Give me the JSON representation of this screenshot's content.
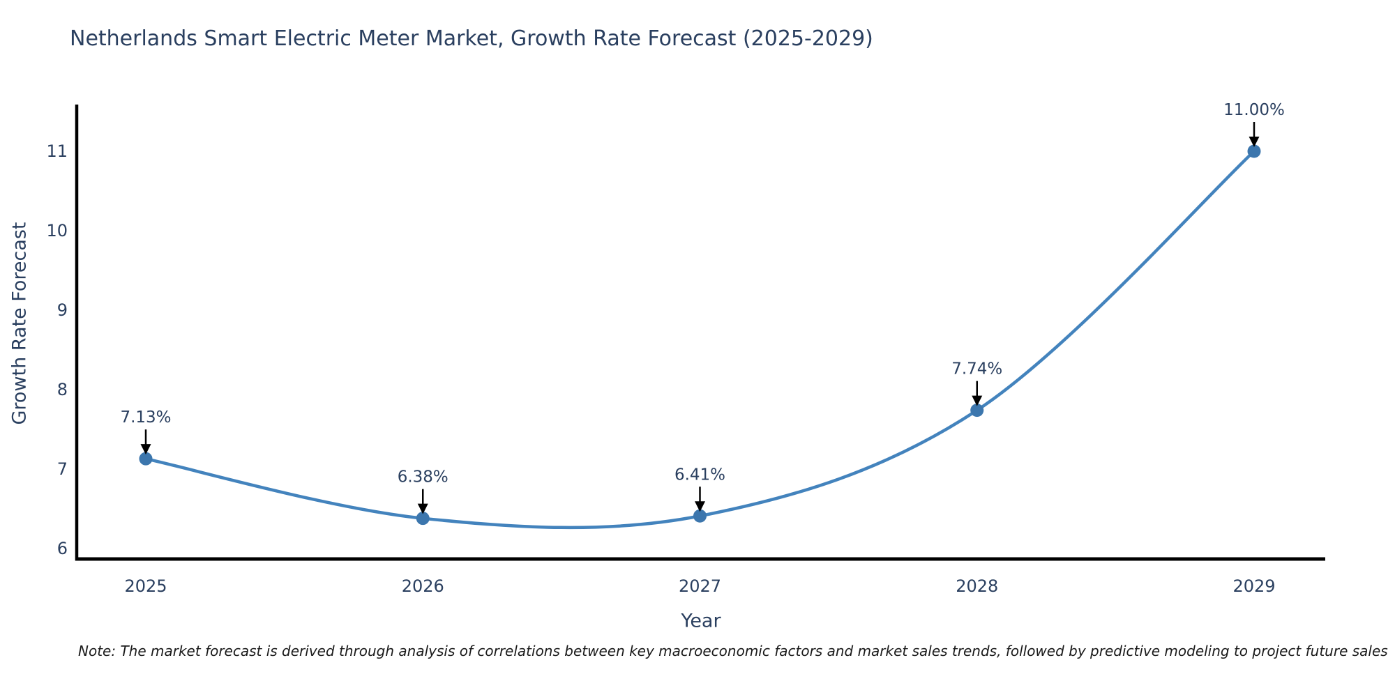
{
  "chart": {
    "title": "Netherlands Smart Electric Meter Market, Growth Rate Forecast (2025-2029)",
    "xlabel": "Year",
    "ylabel": "Growth Rate Forecast",
    "note": "Note: The market forecast is derived through analysis of correlations between key macroeconomic factors and market sales trends, followed by predictive modeling to project future sales"
  },
  "chart_data": {
    "type": "line",
    "line_shape": "spline",
    "title": "Netherlands Smart Electric Meter Market, Growth Rate Forecast (2025-2029)",
    "xlabel": "Year",
    "ylabel": "Growth Rate Forecast",
    "x": [
      2025,
      2026,
      2027,
      2028,
      2029
    ],
    "values": [
      7.13,
      6.38,
      6.41,
      7.74,
      11.0
    ],
    "point_labels": [
      "7.13%",
      "6.38%",
      "6.41%",
      "7.74%",
      "11.00%"
    ],
    "yticks": [
      6,
      7,
      8,
      9,
      10,
      11
    ],
    "ylim": [
      5.87,
      11.59
    ],
    "grid": false,
    "legend_position": "none",
    "markers": true,
    "annotation_arrows": true,
    "colors": {
      "line": "#4383bd",
      "marker": "#3c76ad",
      "axis": "#000000",
      "text": "#2a3f5f",
      "annotation_arrow": "#000000",
      "note_text": "#1a1a1a",
      "background": "#ffffff"
    }
  }
}
